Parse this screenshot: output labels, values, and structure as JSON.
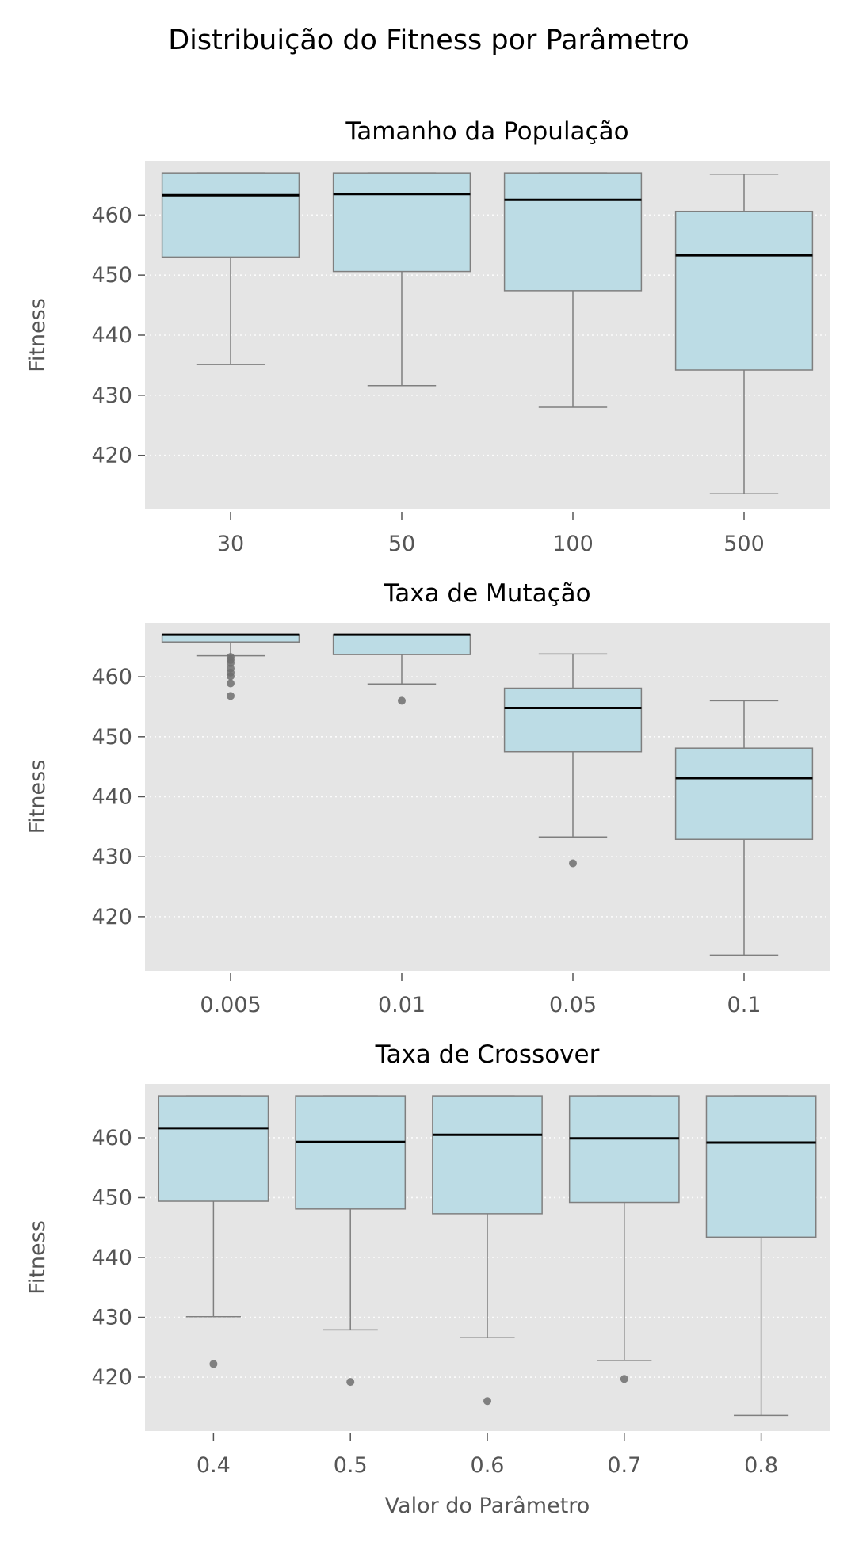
{
  "figure": {
    "title": "Distribuição do Fitness por Parâmetro"
  },
  "colors": {
    "panel_background": "#e5e5e5",
    "box_fill": "#bcdce5",
    "box_edge": "#7f7f7f",
    "median": "#000000",
    "outlier": "#6e6e6e",
    "grid": "#ffffff"
  },
  "chart_data": [
    {
      "type": "box",
      "title": "Tamanho da População",
      "xlabel": "",
      "ylabel": "Fitness",
      "ylim": [
        411,
        469
      ],
      "yticks": [
        420,
        430,
        440,
        450,
        460
      ],
      "grid": "y-dotted",
      "categories": [
        "30",
        "50",
        "100",
        "500"
      ],
      "boxes": [
        {
          "whislo": 435.1,
          "q1": 453.0,
          "med": 463.3,
          "q3": 467.0,
          "whishi": 467.0,
          "fliers": []
        },
        {
          "whislo": 431.6,
          "q1": 450.6,
          "med": 463.5,
          "q3": 467.0,
          "whishi": 467.0,
          "fliers": []
        },
        {
          "whislo": 428.0,
          "q1": 447.4,
          "med": 462.5,
          "q3": 467.0,
          "whishi": 467.0,
          "fliers": []
        },
        {
          "whislo": 413.6,
          "q1": 434.2,
          "med": 453.3,
          "q3": 460.6,
          "whishi": 466.8,
          "fliers": []
        }
      ]
    },
    {
      "type": "box",
      "title": "Taxa de Mutação",
      "xlabel": "",
      "ylabel": "Fitness",
      "ylim": [
        411,
        469
      ],
      "yticks": [
        420,
        430,
        440,
        450,
        460
      ],
      "grid": "y-dotted",
      "categories": [
        "0.005",
        "0.01",
        "0.05",
        "0.1"
      ],
      "boxes": [
        {
          "whislo": 463.5,
          "q1": 465.8,
          "med": 467.0,
          "q3": 467.0,
          "whishi": 467.0,
          "fliers": [
            463.3,
            462.8,
            462.3,
            461.4,
            460.7,
            460.1,
            458.9,
            456.8
          ]
        },
        {
          "whislo": 458.8,
          "q1": 463.7,
          "med": 467.0,
          "q3": 467.0,
          "whishi": 467.0,
          "fliers": [
            456.0
          ]
        },
        {
          "whislo": 433.3,
          "q1": 447.5,
          "med": 454.8,
          "q3": 458.1,
          "whishi": 463.8,
          "fliers": [
            428.9
          ]
        },
        {
          "whislo": 413.6,
          "q1": 432.9,
          "med": 443.1,
          "q3": 448.1,
          "whishi": 456.0,
          "fliers": []
        }
      ]
    },
    {
      "type": "box",
      "title": "Taxa de Crossover",
      "xlabel": "Valor do Parâmetro",
      "ylabel": "Fitness",
      "ylim": [
        411,
        469
      ],
      "yticks": [
        420,
        430,
        440,
        450,
        460
      ],
      "grid": "y-dotted",
      "categories": [
        "0.4",
        "0.5",
        "0.6",
        "0.7",
        "0.8"
      ],
      "boxes": [
        {
          "whislo": 430.1,
          "q1": 449.4,
          "med": 461.6,
          "q3": 467.0,
          "whishi": 467.0,
          "fliers": [
            422.2
          ]
        },
        {
          "whislo": 427.9,
          "q1": 448.1,
          "med": 459.3,
          "q3": 467.0,
          "whishi": 467.0,
          "fliers": [
            419.2
          ]
        },
        {
          "whislo": 426.6,
          "q1": 447.3,
          "med": 460.5,
          "q3": 467.0,
          "whishi": 467.0,
          "fliers": [
            416.0
          ]
        },
        {
          "whislo": 422.8,
          "q1": 449.2,
          "med": 459.9,
          "q3": 467.0,
          "whishi": 467.0,
          "fliers": [
            419.7
          ]
        },
        {
          "whislo": 413.6,
          "q1": 443.4,
          "med": 459.2,
          "q3": 467.0,
          "whishi": 467.0,
          "fliers": []
        }
      ]
    }
  ]
}
